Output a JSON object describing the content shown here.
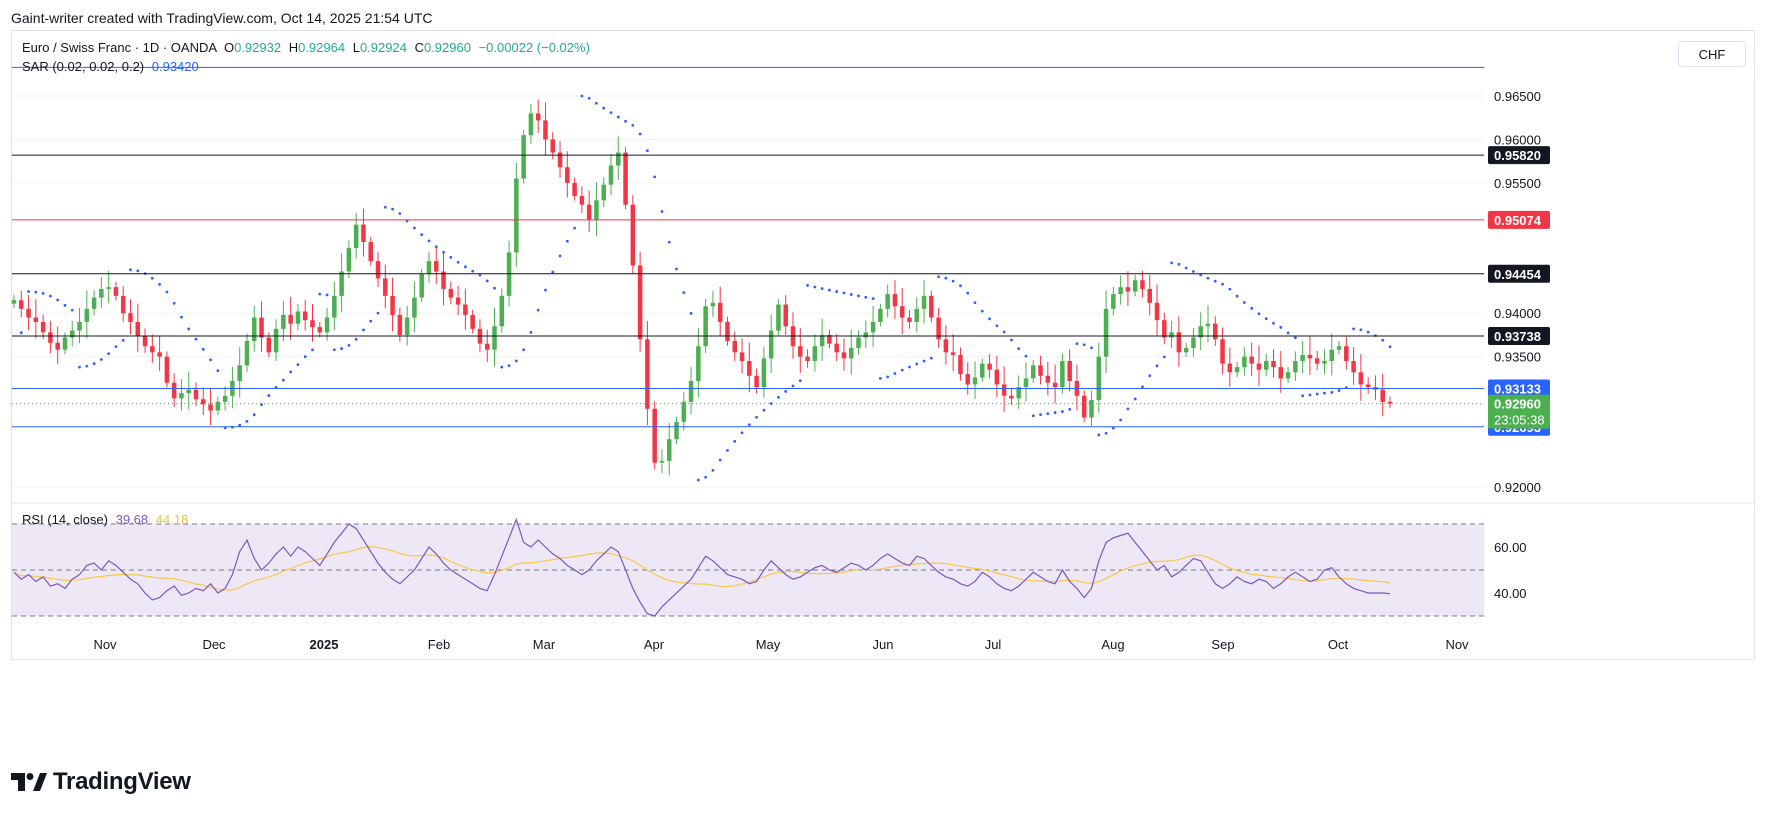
{
  "caption": "Gaint-writer created with TradingView.com, Oct 14, 2025 21:54 UTC",
  "legend": {
    "symbol": "Euro / Swiss Franc · 1D · OANDA",
    "o_label": "O",
    "o_value": "0.92932",
    "h_label": "H",
    "h_value": "0.92964",
    "l_label": "L",
    "l_value": "0.92924",
    "c_label": "C",
    "c_value": "0.92960",
    "change": "−0.00022 (−0.02%)",
    "sar_label": "SAR (0.02, 0.02, 0.2)",
    "sar_value": "0.93420",
    "rsi_label": "RSI (14, close)",
    "rsi_value": "39.68",
    "rsi_ma_value": "44.18"
  },
  "currency_button": "CHF",
  "brand": "TradingView",
  "colors": {
    "up": "#4caf50",
    "down": "#f23645",
    "sar": "#2962ff",
    "rsi": "#7e57c2",
    "rsi_ma": "#f7c948",
    "bg": "#ffffff",
    "rsi_band": "#ede7f6"
  },
  "chart_data": {
    "type": "candlestick",
    "price_ticks": [
      "0.96500",
      "0.96000",
      "0.95500",
      "0.94000",
      "0.93500",
      "0.92000"
    ],
    "ylim": [
      0.9185,
      0.968
    ],
    "months": [
      "Nov",
      "Dec",
      "2025",
      "Feb",
      "Mar",
      "Apr",
      "May",
      "Jun",
      "Jul",
      "Aug",
      "Sep",
      "Oct",
      "Nov"
    ],
    "horizontal_lines": [
      {
        "value": 0.9582,
        "label": "0.95820",
        "color": "#131722"
      },
      {
        "value": 0.95074,
        "label": "0.95074",
        "color": "#f23645"
      },
      {
        "value": 0.94454,
        "label": "0.94454",
        "color": "#131722"
      },
      {
        "value": 0.93738,
        "label": "0.93738",
        "color": "#131722"
      },
      {
        "value": 0.93133,
        "label": "0.93133",
        "color": "#2962ff"
      },
      {
        "value": 0.92693,
        "label": "0.92693",
        "color": "#2962ff"
      },
      {
        "value": 0.9683,
        "label": "",
        "color": "#2962ff"
      }
    ],
    "last_price": {
      "value": 0.9296,
      "label": "0.92960",
      "countdown": "23:05:38"
    },
    "closes": [
      0.9415,
      0.9405,
      0.9395,
      0.939,
      0.9378,
      0.9366,
      0.9358,
      0.9372,
      0.938,
      0.939,
      0.9405,
      0.9418,
      0.9428,
      0.943,
      0.942,
      0.94,
      0.939,
      0.9374,
      0.9362,
      0.9355,
      0.935,
      0.932,
      0.9302,
      0.9308,
      0.9312,
      0.9301,
      0.9295,
      0.9288,
      0.9298,
      0.9305,
      0.9322,
      0.934,
      0.9368,
      0.9395,
      0.9372,
      0.9355,
      0.9382,
      0.9398,
      0.9388,
      0.9402,
      0.9392,
      0.9384,
      0.9378,
      0.9395,
      0.942,
      0.9448,
      0.9475,
      0.9502,
      0.9482,
      0.946,
      0.944,
      0.942,
      0.9398,
      0.9375,
      0.9395,
      0.9418,
      0.9445,
      0.946,
      0.9448,
      0.9428,
      0.9418,
      0.941,
      0.9398,
      0.9382,
      0.9365,
      0.9358,
      0.9385,
      0.942,
      0.947,
      0.9555,
      0.9605,
      0.963,
      0.9622,
      0.96,
      0.9585,
      0.9568,
      0.955,
      0.9535,
      0.9525,
      0.9508,
      0.953,
      0.9548,
      0.957,
      0.9585,
      0.9525,
      0.9455,
      0.937,
      0.929,
      0.9228,
      0.923,
      0.9255,
      0.9275,
      0.9298,
      0.9322,
      0.9362,
      0.9408,
      0.9412,
      0.939,
      0.9368,
      0.9355,
      0.9345,
      0.9328,
      0.9315,
      0.9348,
      0.938,
      0.941,
      0.9385,
      0.9362,
      0.935,
      0.9345,
      0.9362,
      0.9375,
      0.9365,
      0.9355,
      0.9348,
      0.936,
      0.9372,
      0.9378,
      0.939,
      0.9405,
      0.9422,
      0.9408,
      0.9395,
      0.939,
      0.9405,
      0.942,
      0.9395,
      0.937,
      0.9355,
      0.9352,
      0.933,
      0.9318,
      0.9326,
      0.9342,
      0.9335,
      0.9318,
      0.9305,
      0.9302,
      0.9315,
      0.9325,
      0.934,
      0.9328,
      0.932,
      0.9315,
      0.9345,
      0.9322,
      0.9305,
      0.928,
      0.93,
      0.935,
      0.9405,
      0.9422,
      0.943,
      0.9425,
      0.9438,
      0.9428,
      0.9412,
      0.9392,
      0.9372,
      0.9378,
      0.9355,
      0.936,
      0.9372,
      0.9385,
      0.9388,
      0.937,
      0.9342,
      0.9332,
      0.9338,
      0.935,
      0.9342,
      0.9335,
      0.9345,
      0.9338,
      0.9325,
      0.9332,
      0.9345,
      0.9352,
      0.9348,
      0.9342,
      0.9345,
      0.9358,
      0.9362,
      0.9345,
      0.9332,
      0.9318,
      0.9315,
      0.9312,
      0.9298,
      0.9296
    ],
    "rsi": [
      49,
      46,
      48,
      45,
      47,
      43,
      44,
      42,
      46,
      48,
      52,
      53,
      50,
      54,
      52,
      49,
      46,
      44,
      40,
      37,
      38,
      41,
      43,
      39,
      40,
      42,
      41,
      44,
      40,
      42,
      48,
      58,
      63,
      55,
      50,
      53,
      57,
      60,
      56,
      60,
      58,
      55,
      52,
      57,
      62,
      66,
      70,
      68,
      63,
      58,
      53,
      49,
      46,
      44,
      47,
      50,
      55,
      60,
      57,
      53,
      50,
      48,
      46,
      44,
      42,
      41,
      48,
      56,
      64,
      72,
      62,
      60,
      63,
      60,
      57,
      55,
      52,
      50,
      48,
      50,
      54,
      57,
      60,
      58,
      50,
      42,
      36,
      31,
      30,
      34,
      37,
      40,
      43,
      46,
      51,
      56,
      54,
      51,
      48,
      47,
      46,
      44,
      45,
      50,
      54,
      51,
      48,
      46,
      47,
      49,
      51,
      52,
      50,
      49,
      51,
      53,
      52,
      50,
      52,
      55,
      57,
      55,
      53,
      52,
      56,
      55,
      52,
      49,
      47,
      46,
      44,
      43,
      45,
      49,
      47,
      44,
      42,
      41,
      43,
      46,
      49,
      47,
      45,
      44,
      50,
      45,
      42,
      38,
      42,
      54,
      62,
      64,
      65,
      66,
      62,
      58,
      54,
      50,
      52,
      47,
      49,
      52,
      55,
      54,
      49,
      44,
      42,
      44,
      47,
      45,
      44,
      46,
      45,
      42,
      44,
      47,
      49,
      47,
      45,
      46,
      50,
      51,
      47,
      44,
      42,
      41,
      40,
      40,
      40,
      39.68
    ],
    "rsi_ticks": [
      "60.00",
      "40.00"
    ],
    "rsi_bands": [
      70,
      50,
      30
    ]
  }
}
